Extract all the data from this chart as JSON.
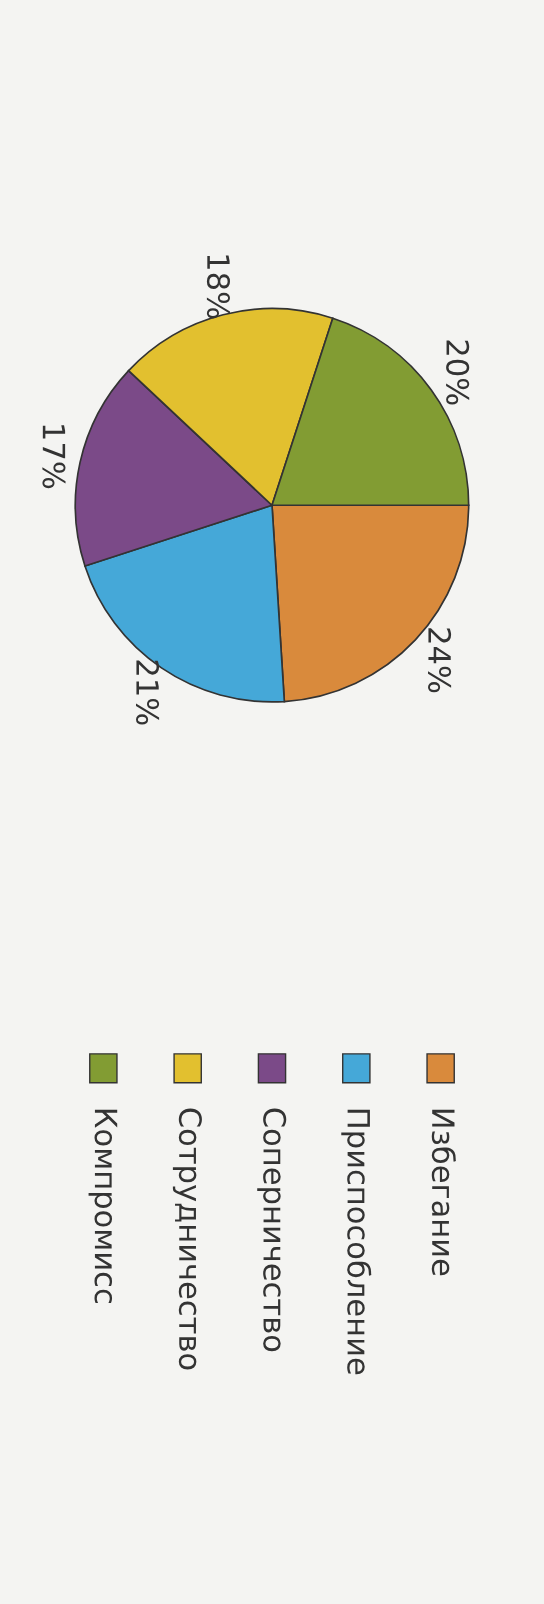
{
  "chart_data": {
    "type": "pie",
    "categories": [
      "Избегание",
      "Приспособление",
      "Соперничество",
      "Сотрудничество",
      "Компромисс"
    ],
    "values": [
      24,
      21,
      17,
      18,
      20
    ],
    "colors": [
      "#d98a3c",
      "#45a8d8",
      "#7b4a88",
      "#e2c02f",
      "#829c33"
    ],
    "value_labels": [
      "24%",
      "21%",
      "17%",
      "18%",
      "20%"
    ],
    "legend": "bottom"
  }
}
